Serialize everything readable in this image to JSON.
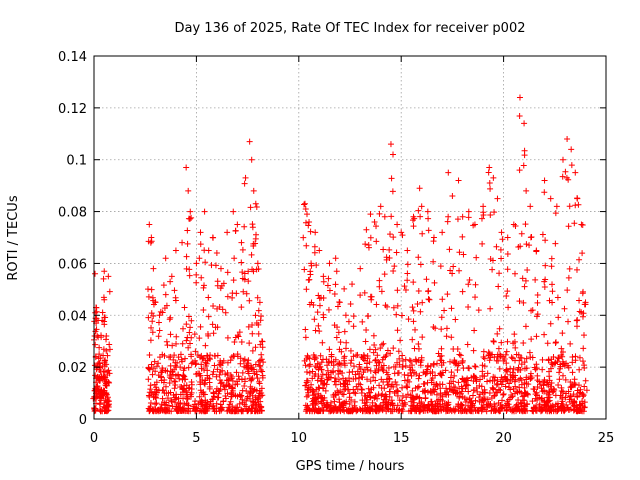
{
  "chart_data": {
    "type": "scatter",
    "title": "Day 136 of 2025, Rate Of TEC Index for receiver p002",
    "xlabel": "GPS time / hours",
    "ylabel": "ROTI / TECUs",
    "xlim": [
      0,
      25
    ],
    "ylim": [
      0,
      0.14
    ],
    "xticks": [
      "0",
      "5",
      "10",
      "15",
      "20",
      "25"
    ],
    "yticks": [
      "0",
      "0.02",
      "0.04",
      "0.06",
      "0.08",
      "0.1",
      "0.12",
      "0.14"
    ],
    "grid": true,
    "marker": "+",
    "color": "#ff0000",
    "series": [
      {
        "x": [
          0.05,
          0.1,
          0.2,
          0.3,
          0.4,
          0.5,
          0.6,
          0.7,
          0.15,
          0.35,
          0.55,
          0.25,
          0.45,
          0.65,
          0.5,
          0.05,
          2.7,
          2.8,
          2.9,
          3.0,
          3.2,
          3.5,
          3.8,
          4.0,
          4.3,
          4.5,
          4.6,
          4.7,
          5.0,
          5.2,
          5.4,
          5.6,
          5.8,
          6.0,
          6.2,
          6.5,
          6.8,
          7.0,
          7.2,
          7.4,
          7.6,
          7.7,
          7.8,
          7.9,
          8.0,
          8.1,
          8.2,
          10.3,
          10.4,
          10.5,
          10.6,
          10.8,
          11.0,
          11.2,
          11.5,
          11.8,
          12.0,
          12.3,
          12.6,
          13.0,
          13.3,
          13.5,
          13.7,
          14.0,
          14.2,
          14.5,
          14.6,
          14.8,
          15.0,
          15.3,
          15.6,
          15.9,
          16.0,
          16.3,
          16.6,
          17.0,
          17.3,
          17.5,
          17.8,
          18.0,
          18.3,
          18.6,
          19.0,
          19.3,
          19.5,
          19.7,
          19.9,
          20.2,
          20.5,
          20.8,
          21.0,
          21.1,
          21.3,
          21.6,
          22.0,
          22.3,
          22.6,
          22.9,
          23.1,
          23.3,
          23.5,
          23.6,
          23.8,
          24.0
        ],
        "y": [
          0.056,
          0.043,
          0.038,
          0.02,
          0.038,
          0.057,
          0.032,
          0.055,
          0.012,
          0.008,
          0.016,
          0.025,
          0.01,
          0.005,
          0.046,
          0.004,
          0.075,
          0.07,
          0.058,
          0.045,
          0.04,
          0.062,
          0.055,
          0.065,
          0.068,
          0.097,
          0.088,
          0.08,
          0.06,
          0.072,
          0.08,
          0.065,
          0.07,
          0.064,
          0.058,
          0.072,
          0.08,
          0.075,
          0.068,
          0.093,
          0.107,
          0.1,
          0.088,
          0.083,
          0.06,
          0.045,
          0.03,
          0.083,
          0.079,
          0.076,
          0.06,
          0.072,
          0.065,
          0.055,
          0.06,
          0.062,
          0.045,
          0.04,
          0.052,
          0.058,
          0.073,
          0.079,
          0.076,
          0.082,
          0.078,
          0.106,
          0.102,
          0.075,
          0.072,
          0.065,
          0.078,
          0.089,
          0.082,
          0.08,
          0.07,
          0.072,
          0.095,
          0.086,
          0.092,
          0.078,
          0.08,
          0.075,
          0.082,
          0.097,
          0.093,
          0.085,
          0.072,
          0.07,
          0.075,
          0.124,
          0.114,
          0.088,
          0.082,
          0.065,
          0.092,
          0.085,
          0.082,
          0.1,
          0.108,
          0.104,
          0.095,
          0.085,
          0.075,
          0.045
        ]
      }
    ]
  }
}
